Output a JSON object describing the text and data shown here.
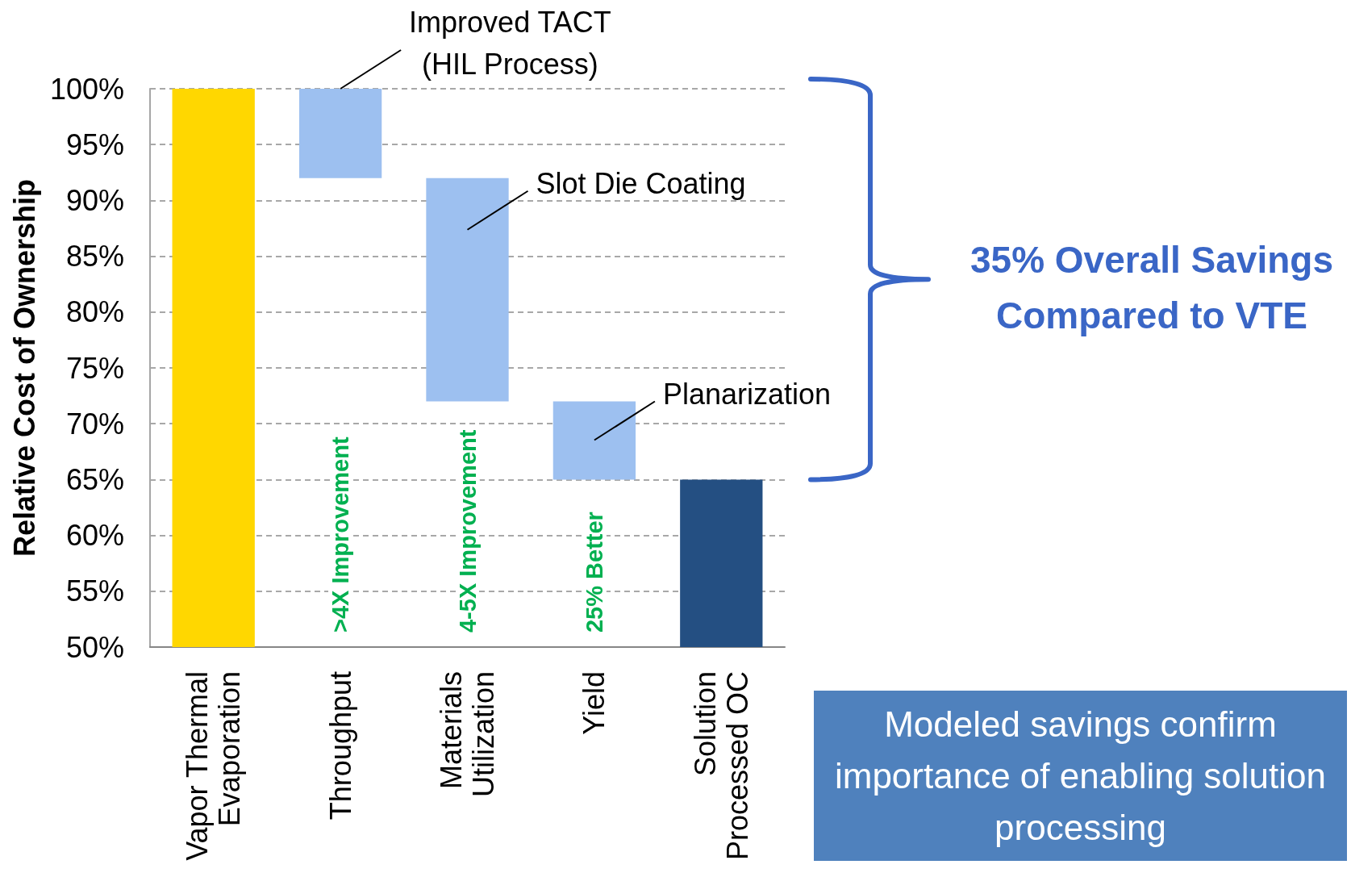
{
  "chart_data": {
    "type": "bar",
    "ylabel": "Relative Cost of Ownership",
    "categories": [
      "Vapor Thermal Evaporation",
      "Throughput",
      "Materials Utilization",
      "Yield",
      "Solution Processed OC"
    ],
    "base": [
      50,
      92,
      72,
      65,
      50
    ],
    "values": [
      50,
      8,
      20,
      7,
      15
    ],
    "colors": [
      "#ffd700",
      "#9dc0f0",
      "#9dc0f0",
      "#9dc0f0",
      "#244f82"
    ],
    "ylim": [
      50,
      100
    ],
    "yticks": [
      {
        "value": 50,
        "label": "50%"
      },
      {
        "value": 55,
        "label": "55%"
      },
      {
        "value": 60,
        "label": "60%"
      },
      {
        "value": 65,
        "label": "65%"
      },
      {
        "value": 70,
        "label": "70%"
      },
      {
        "value": 75,
        "label": "75%"
      },
      {
        "value": 80,
        "label": "80%"
      },
      {
        "value": 85,
        "label": "85%"
      },
      {
        "value": 90,
        "label": "90%"
      },
      {
        "value": 95,
        "label": "95%"
      },
      {
        "value": 100,
        "label": "100%"
      }
    ],
    "grid": "y",
    "annotations": [
      {
        "text": "Improved TACT (HIL Process)",
        "x": "Throughput",
        "y": 100
      },
      "Slot Die Coating",
      "Planarization",
      ">4X Improvement",
      "4-5X Improvement",
      "25% Better",
      "35% Overall Savings Compared to VTE",
      "Modeled savings confirm importance of enabling solution processing"
    ]
  }
}
